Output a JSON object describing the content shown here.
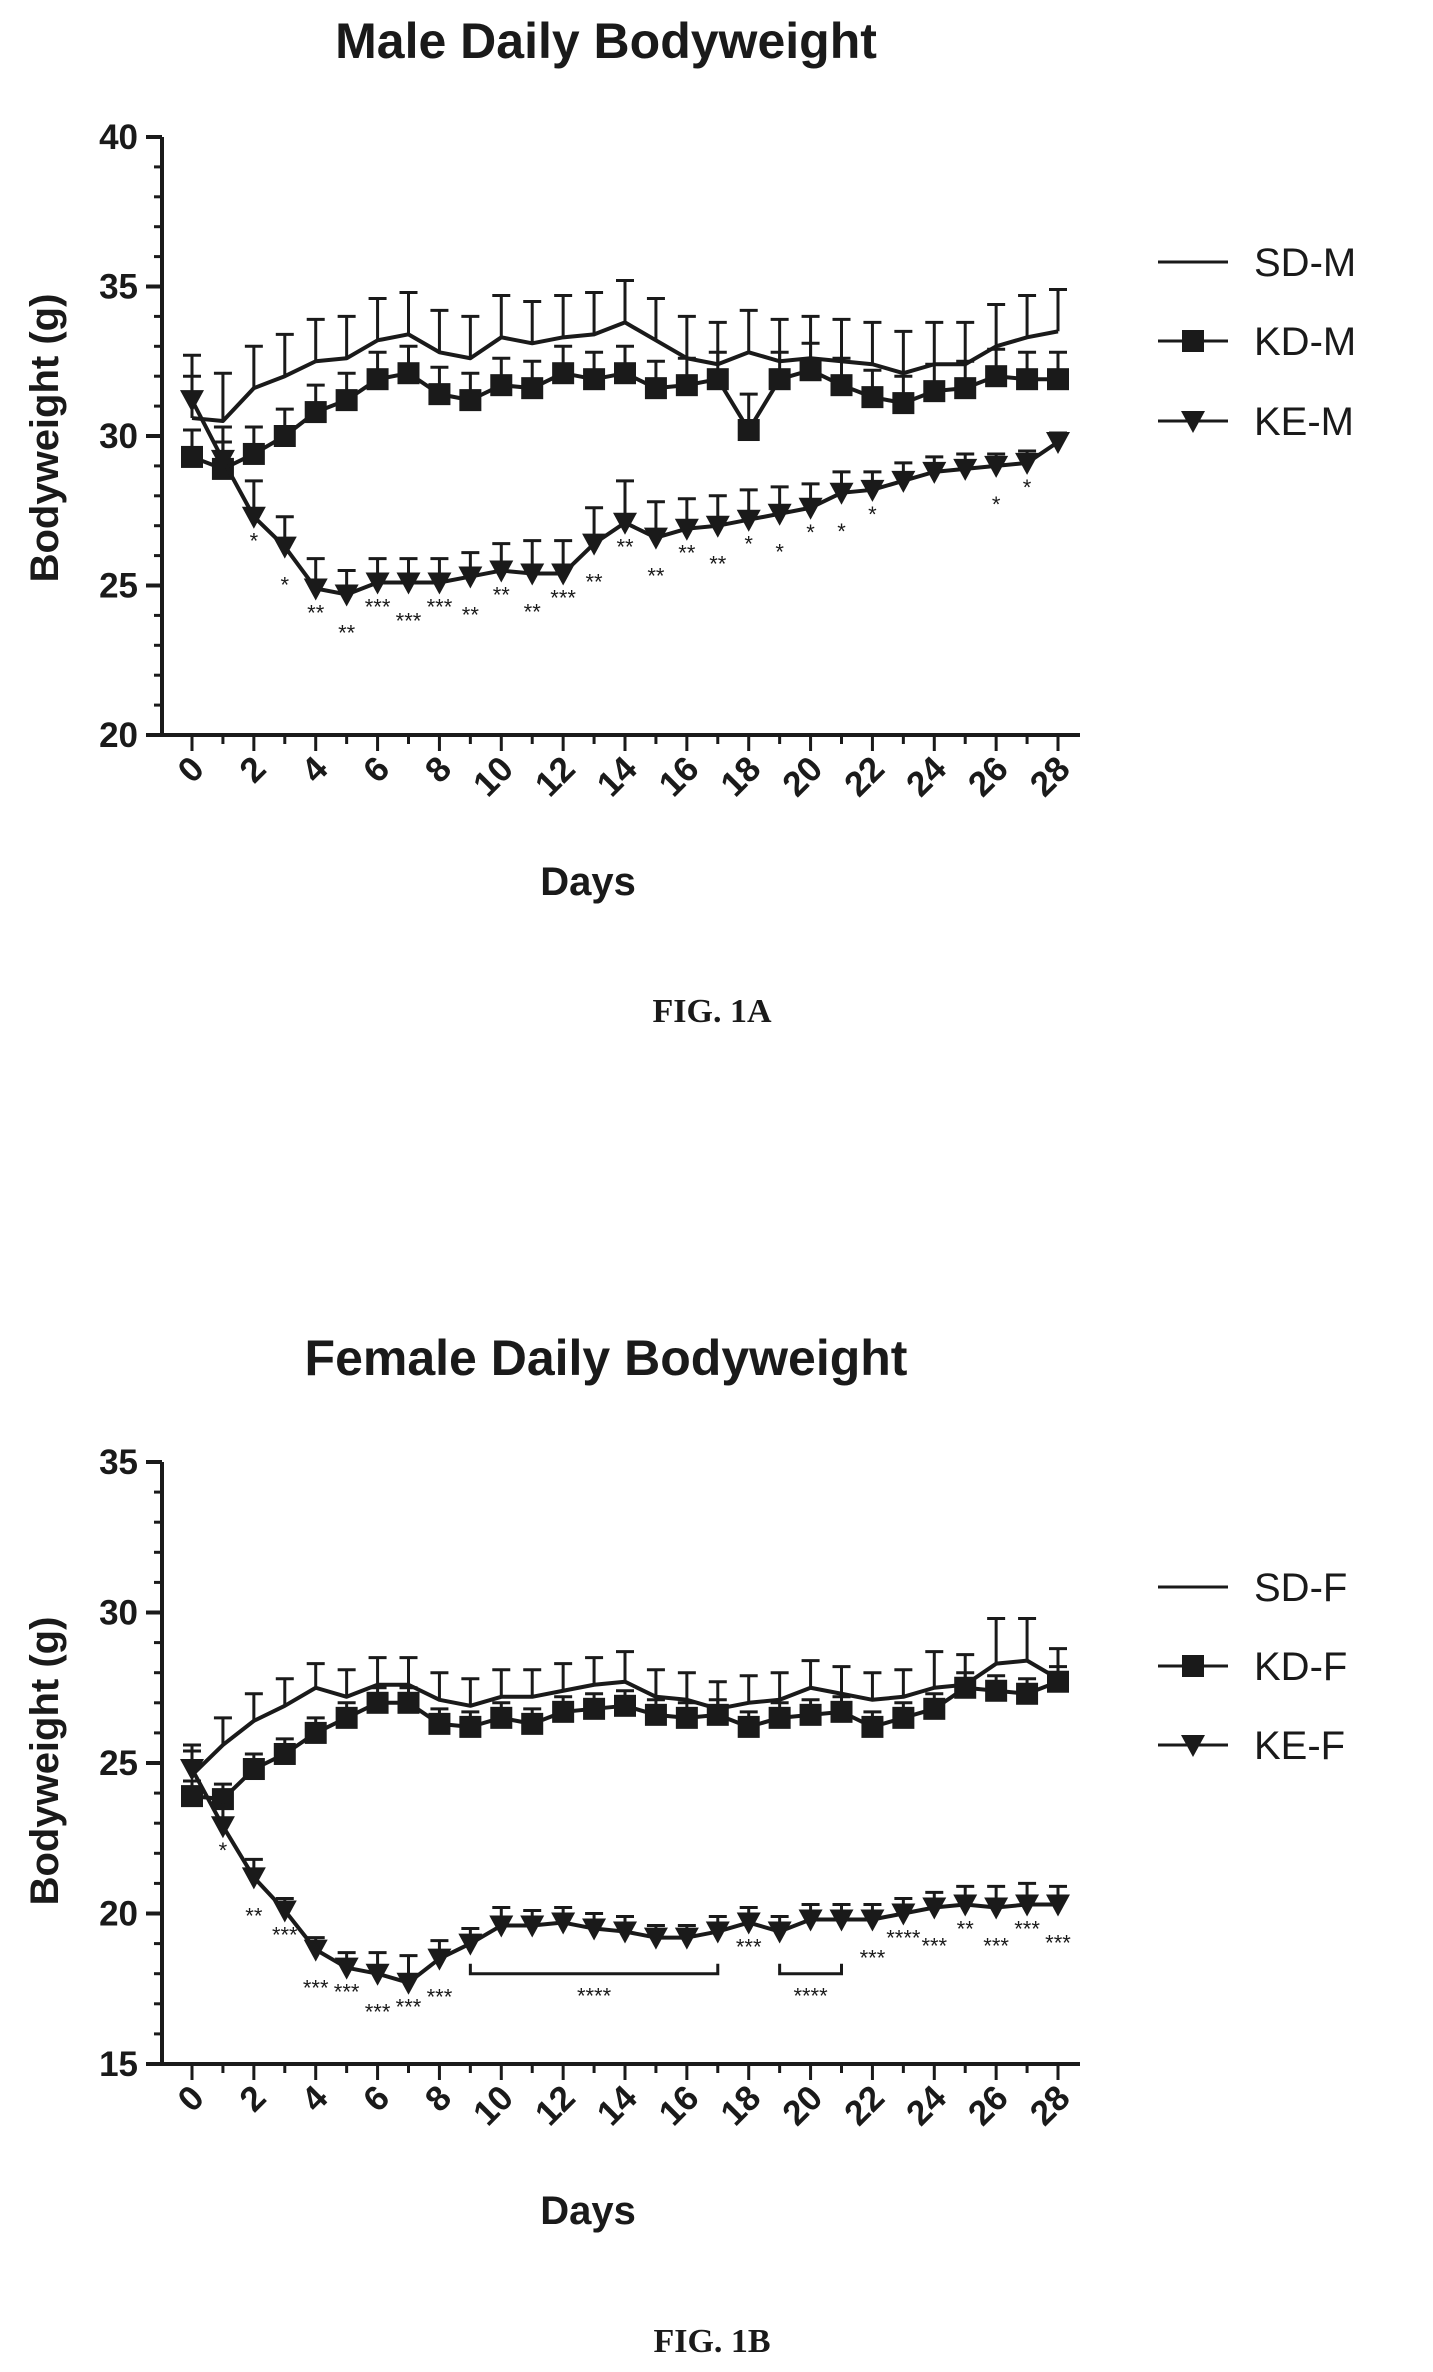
{
  "figures": [
    {
      "figure_label": "FIG. 1A",
      "chart_data": {
        "type": "line",
        "title": "Male Daily Bodyweight",
        "xlabel": "Days",
        "ylabel": "Bodyweight (g)",
        "xlim": [
          0,
          28
        ],
        "ylim": [
          20,
          40
        ],
        "x_ticks": [
          0,
          2,
          4,
          6,
          8,
          10,
          12,
          14,
          16,
          18,
          20,
          22,
          24,
          26,
          28
        ],
        "y_ticks": [
          20,
          25,
          30,
          35,
          40
        ],
        "grid": false,
        "legend_position": "right",
        "x": [
          0,
          1,
          2,
          3,
          4,
          5,
          6,
          7,
          8,
          9,
          10,
          11,
          12,
          13,
          14,
          15,
          16,
          17,
          18,
          19,
          20,
          21,
          22,
          23,
          24,
          25,
          26,
          27,
          28
        ],
        "series": [
          {
            "name": "SD-M",
            "marker": "none",
            "values": [
              30.6,
              30.5,
              31.6,
              32.0,
              32.5,
              32.6,
              33.2,
              33.4,
              32.8,
              32.6,
              33.3,
              33.1,
              33.3,
              33.4,
              33.8,
              33.2,
              32.6,
              32.4,
              32.8,
              32.5,
              32.6,
              32.5,
              32.4,
              32.1,
              32.4,
              32.4,
              33.0,
              33.3,
              33.5
            ],
            "errors": [
              1.4,
              1.6,
              1.4,
              1.4,
              1.4,
              1.4,
              1.4,
              1.4,
              1.4,
              1.4,
              1.4,
              1.4,
              1.4,
              1.4,
              1.4,
              1.4,
              1.4,
              1.4,
              1.4,
              1.4,
              1.4,
              1.4,
              1.4,
              1.4,
              1.4,
              1.4,
              1.4,
              1.4,
              1.4
            ]
          },
          {
            "name": "KD-M",
            "marker": "square",
            "values": [
              29.3,
              28.9,
              29.4,
              30.0,
              30.8,
              31.2,
              31.9,
              32.1,
              31.4,
              31.2,
              31.7,
              31.6,
              32.1,
              31.9,
              32.1,
              31.6,
              31.7,
              31.9,
              30.2,
              31.9,
              32.2,
              31.7,
              31.3,
              31.1,
              31.5,
              31.6,
              32.0,
              31.9,
              31.9
            ],
            "errors": [
              0.9,
              0.9,
              0.9,
              0.9,
              0.9,
              0.9,
              0.9,
              0.9,
              0.9,
              0.9,
              0.9,
              0.9,
              0.9,
              0.9,
              0.9,
              0.9,
              0.9,
              0.9,
              1.2,
              0.9,
              0.9,
              0.9,
              0.9,
              0.9,
              0.9,
              0.9,
              0.9,
              0.9,
              0.9
            ]
          },
          {
            "name": "KE-M",
            "marker": "triangle-down",
            "values": [
              31.2,
              29.2,
              27.3,
              26.3,
              24.9,
              24.7,
              25.1,
              25.1,
              25.1,
              25.3,
              25.5,
              25.4,
              25.4,
              26.4,
              27.1,
              26.6,
              26.9,
              27.0,
              27.2,
              27.4,
              27.6,
              28.1,
              28.2,
              28.5,
              28.8,
              28.9,
              29.0,
              29.1,
              29.8
            ],
            "errors": [
              1.5,
              1.1,
              1.2,
              1.0,
              1.0,
              0.8,
              0.8,
              0.8,
              0.8,
              0.8,
              0.9,
              1.1,
              1.1,
              1.2,
              1.4,
              1.2,
              1.0,
              1.0,
              1.0,
              0.9,
              0.8,
              0.7,
              0.6,
              0.6,
              0.5,
              0.5,
              0.4,
              0.4,
              0.3
            ]
          }
        ],
        "annotations": [
          {
            "x": 2,
            "label": "*"
          },
          {
            "x": 3,
            "label": "*"
          },
          {
            "x": 4,
            "label": "**"
          },
          {
            "x": 5,
            "label": "**"
          },
          {
            "x": 6,
            "label": "***"
          },
          {
            "x": 7,
            "label": "***"
          },
          {
            "x": 8,
            "label": "***"
          },
          {
            "x": 9,
            "label": "**"
          },
          {
            "x": 10,
            "label": "**"
          },
          {
            "x": 11,
            "label": "**"
          },
          {
            "x": 12,
            "label": "***"
          },
          {
            "x": 13,
            "label": "**"
          },
          {
            "x": 14,
            "label": "**"
          },
          {
            "x": 15,
            "label": "**"
          },
          {
            "x": 16,
            "label": "**"
          },
          {
            "x": 17,
            "label": "**"
          },
          {
            "x": 18,
            "label": "*"
          },
          {
            "x": 19,
            "label": "*"
          },
          {
            "x": 20,
            "label": "*"
          },
          {
            "x": 21,
            "label": "*"
          },
          {
            "x": 22,
            "label": "*"
          },
          {
            "x": 26,
            "label": "*"
          },
          {
            "x": 27,
            "label": "*"
          }
        ]
      }
    },
    {
      "figure_label": "FIG. 1B",
      "chart_data": {
        "type": "line",
        "title": "Female Daily Bodyweight",
        "xlabel": "Days",
        "ylabel": "Bodyweight (g)",
        "xlim": [
          0,
          28
        ],
        "ylim": [
          15,
          35
        ],
        "x_ticks": [
          0,
          2,
          4,
          6,
          8,
          10,
          12,
          14,
          16,
          18,
          20,
          22,
          24,
          26,
          28
        ],
        "y_ticks": [
          15,
          20,
          25,
          30,
          35
        ],
        "grid": false,
        "legend_position": "right",
        "x": [
          0,
          1,
          2,
          3,
          4,
          5,
          6,
          7,
          8,
          9,
          10,
          11,
          12,
          13,
          14,
          15,
          16,
          17,
          18,
          19,
          20,
          21,
          22,
          23,
          24,
          25,
          26,
          27,
          28
        ],
        "series": [
          {
            "name": "SD-F",
            "marker": "none",
            "values": [
              24.6,
              25.6,
              26.4,
              26.9,
              27.5,
              27.2,
              27.6,
              27.6,
              27.1,
              26.9,
              27.2,
              27.2,
              27.4,
              27.6,
              27.7,
              27.2,
              27.1,
              26.8,
              27.0,
              27.1,
              27.5,
              27.3,
              27.1,
              27.2,
              27.5,
              27.6,
              28.3,
              28.4,
              27.8
            ],
            "errors": [
              0.8,
              0.9,
              0.9,
              0.9,
              0.8,
              0.9,
              0.9,
              0.9,
              0.9,
              0.9,
              0.9,
              0.9,
              0.9,
              0.9,
              1.0,
              0.9,
              0.9,
              0.9,
              0.9,
              0.9,
              0.9,
              0.9,
              0.9,
              0.9,
              1.2,
              1.0,
              1.5,
              1.4,
              1.0
            ]
          },
          {
            "name": "KD-F",
            "marker": "square",
            "values": [
              23.9,
              23.8,
              24.8,
              25.3,
              26.0,
              26.5,
              27.0,
              27.0,
              26.3,
              26.2,
              26.5,
              26.3,
              26.7,
              26.8,
              26.9,
              26.6,
              26.5,
              26.6,
              26.2,
              26.5,
              26.6,
              26.7,
              26.2,
              26.5,
              26.8,
              27.5,
              27.4,
              27.3,
              27.7
            ],
            "errors": [
              0.5,
              0.5,
              0.5,
              0.5,
              0.5,
              0.5,
              0.5,
              0.5,
              0.5,
              0.5,
              0.5,
              0.5,
              0.5,
              0.5,
              0.5,
              0.5,
              0.5,
              0.5,
              0.5,
              0.5,
              0.5,
              0.5,
              0.5,
              0.5,
              0.5,
              0.5,
              0.5,
              0.5,
              0.5
            ]
          },
          {
            "name": "KE-F",
            "marker": "triangle-down",
            "values": [
              24.8,
              22.9,
              21.2,
              20.1,
              18.8,
              18.2,
              18.0,
              17.7,
              18.5,
              19.0,
              19.6,
              19.6,
              19.7,
              19.5,
              19.4,
              19.2,
              19.2,
              19.4,
              19.7,
              19.4,
              19.8,
              19.8,
              19.8,
              20.0,
              20.2,
              20.3,
              20.2,
              20.3,
              20.3
            ],
            "errors": [
              0.8,
              0.8,
              0.6,
              0.4,
              0.4,
              0.5,
              0.7,
              0.9,
              0.6,
              0.5,
              0.6,
              0.5,
              0.5,
              0.5,
              0.5,
              0.4,
              0.4,
              0.5,
              0.5,
              0.5,
              0.5,
              0.5,
              0.5,
              0.5,
              0.5,
              0.6,
              0.7,
              0.7,
              0.6
            ]
          }
        ],
        "annotations": [
          {
            "x": 1,
            "label": "*"
          },
          {
            "x": 2,
            "label": "**"
          },
          {
            "x": 3,
            "label": "***"
          },
          {
            "x": 4,
            "label": "***"
          },
          {
            "x": 5,
            "label": "***"
          },
          {
            "x": 6,
            "label": "***"
          },
          {
            "x": 7,
            "label": "***"
          },
          {
            "x": 8,
            "label": "***"
          },
          {
            "x": 18,
            "label": "***"
          },
          {
            "x": 22,
            "label": "***"
          },
          {
            "x": 23,
            "label": "****"
          },
          {
            "x": 24,
            "label": "***"
          },
          {
            "x": 25,
            "label": "**"
          },
          {
            "x": 26,
            "label": "***"
          },
          {
            "x": 27,
            "label": "***"
          },
          {
            "x": 28,
            "label": "***"
          }
        ],
        "bracket_annotations": [
          {
            "x_start": 9,
            "x_end": 17,
            "label": "****"
          },
          {
            "x_start": 19,
            "x_end": 21,
            "label": "****"
          }
        ]
      }
    }
  ]
}
